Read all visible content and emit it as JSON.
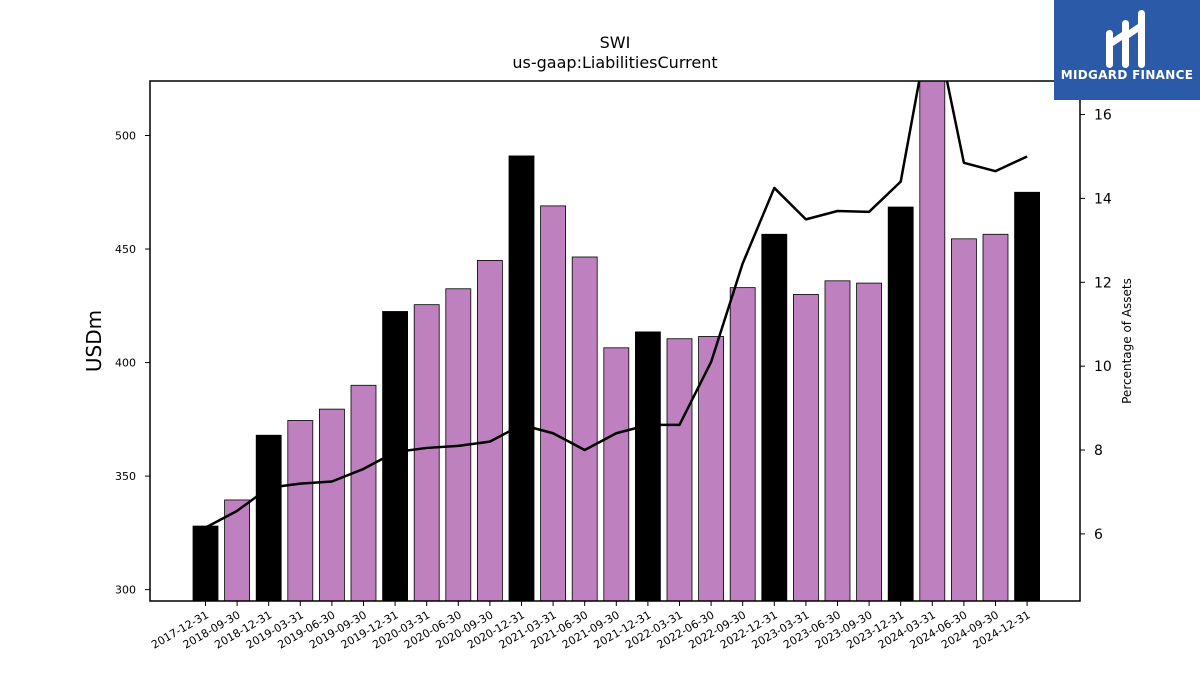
{
  "brand": {
    "name": "MIDGARD FINANCE",
    "bg_color": "#2a5aa8"
  },
  "chart_data": {
    "type": "bar",
    "title": "SWI",
    "subtitle": "us-gaap:LiabilitiesCurrent",
    "ylabel": "USDm",
    "y2label": "Percentage of Assets",
    "ylim": [
      295,
      524
    ],
    "y2lim": [
      4.4,
      16.8
    ],
    "yticks": [
      300,
      350,
      400,
      450,
      500
    ],
    "y2ticks": [
      6,
      8,
      10,
      12,
      14,
      16
    ],
    "colors": {
      "annual_bar": "#000000",
      "quarter_bar": "#bf80bf",
      "line": "#000000"
    },
    "categories": [
      "2017-12-31",
      "2018-09-30",
      "2018-12-31",
      "2019-03-31",
      "2019-06-30",
      "2019-09-30",
      "2019-12-31",
      "2020-03-31",
      "2020-06-30",
      "2020-09-30",
      "2020-12-31",
      "2021-03-31",
      "2021-06-30",
      "2021-09-30",
      "2021-12-31",
      "2022-03-31",
      "2022-06-30",
      "2022-09-30",
      "2022-12-31",
      "2023-03-31",
      "2023-06-30",
      "2023-09-30",
      "2023-12-31",
      "2024-03-31",
      "2024-06-30",
      "2024-09-30",
      "2024-12-31"
    ],
    "series": [
      {
        "kind": "bar",
        "axis": "left",
        "values": [
          328,
          339.5,
          368,
          374.5,
          379.5,
          390,
          422.5,
          425.5,
          432.5,
          445,
          491,
          469,
          446.5,
          406.5,
          413.5,
          410.5,
          411.5,
          433,
          456.5,
          430,
          436,
          435,
          468.5,
          530,
          454.5,
          456.5,
          475
        ],
        "annual": [
          true,
          false,
          true,
          false,
          false,
          false,
          true,
          false,
          false,
          false,
          true,
          false,
          false,
          false,
          true,
          false,
          false,
          false,
          true,
          false,
          false,
          false,
          true,
          false,
          false,
          false,
          true
        ]
      },
      {
        "kind": "line",
        "axis": "right",
        "values": [
          6.15,
          6.55,
          7.1,
          7.2,
          7.25,
          7.55,
          7.95,
          8.05,
          8.1,
          8.2,
          8.6,
          8.4,
          8.0,
          8.4,
          8.6,
          8.6,
          10.1,
          12.45,
          14.25,
          13.5,
          13.7,
          13.68,
          14.4,
          18.5,
          14.85,
          14.65,
          15.0
        ]
      }
    ]
  }
}
